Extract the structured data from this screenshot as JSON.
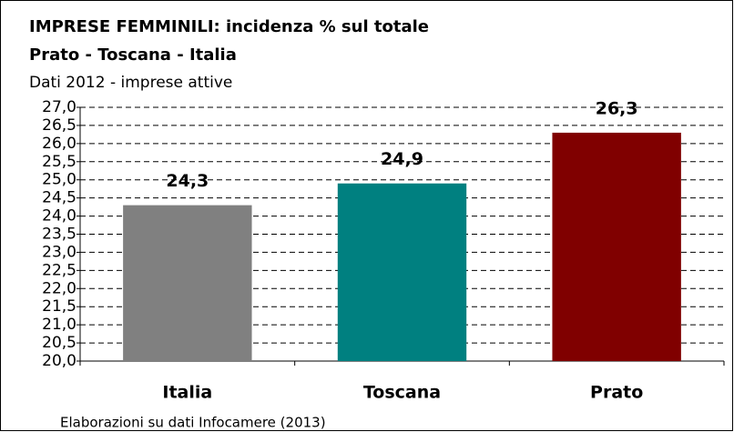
{
  "chart_data": {
    "type": "bar",
    "title": "IMPRESE FEMMINILI: incidenza % sul totale",
    "subtitle": "Prato - Toscana - Italia",
    "note": "Dati 2012 - imprese attive",
    "source": "Elaborazioni su dati Infocamere (2013)",
    "categories": [
      "Italia",
      "Toscana",
      "Prato"
    ],
    "values": [
      24.3,
      24.9,
      26.3
    ],
    "value_labels": [
      "24,3",
      "24,9",
      "26,3"
    ],
    "colors": [
      "#808080",
      "#008080",
      "#800000"
    ],
    "ylim": [
      20,
      27
    ],
    "yticks": [
      {
        "value": 20,
        "label": "20,0"
      },
      {
        "value": 20.5,
        "label": "20,5"
      },
      {
        "value": 21,
        "label": "21,0"
      },
      {
        "value": 21.5,
        "label": "21,5"
      },
      {
        "value": 22,
        "label": "22,0"
      },
      {
        "value": 22.5,
        "label": "22,5"
      },
      {
        "value": 23,
        "label": "23,0"
      },
      {
        "value": 23.5,
        "label": "23,5"
      },
      {
        "value": 24,
        "label": "24,0"
      },
      {
        "value": 24.5,
        "label": "24,5"
      },
      {
        "value": 25,
        "label": "25,0"
      },
      {
        "value": 25.5,
        "label": "25,5"
      },
      {
        "value": 26,
        "label": "26,0"
      },
      {
        "value": 26.5,
        "label": "26,5"
      },
      {
        "value": 27,
        "label": "27,0"
      }
    ],
    "grid": true
  }
}
